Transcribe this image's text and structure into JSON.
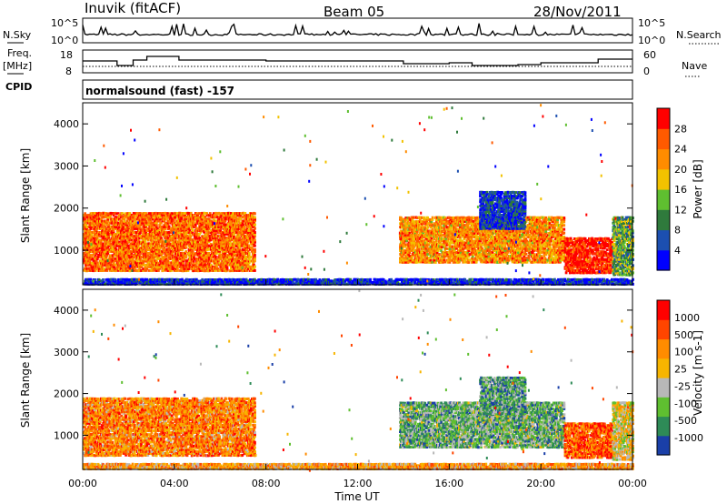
{
  "header": {
    "station": "Inuvik (fitACF)",
    "beam": "Beam 05",
    "date": "28/Nov/2011"
  },
  "sky_panel": {
    "left_label": "N.Sky",
    "right_label": "N.Search",
    "tick_top": "10^5",
    "tick_bottom": "10^0"
  },
  "freq_panel": {
    "left_label_1": "Freq.",
    "left_label_2": "[MHz]",
    "right_label": "Nave",
    "left_ticks": [
      "18",
      "8"
    ],
    "right_ticks": [
      "60",
      "0"
    ]
  },
  "cpid_panel": {
    "left_label": "CPID",
    "text": "normalsound (fast) -157"
  },
  "x_axis": {
    "label": "Time UT",
    "ticks": [
      "00:00",
      "04:00",
      "08:00",
      "12:00",
      "16:00",
      "20:00",
      "00:00"
    ]
  },
  "chart_data": [
    {
      "type": "heatmap",
      "name": "Power",
      "ylabel": "Slant Range [km]",
      "ylim": [
        180,
        4500
      ],
      "yticks": [
        "1000",
        "2000",
        "3000",
        "4000"
      ],
      "xlim_hours": [
        0,
        24
      ],
      "colorbar_label": "Power [dB]",
      "colorbar_ticks": [
        "28",
        "24",
        "20",
        "16",
        "12",
        "8",
        "4"
      ],
      "colors": [
        "#0000ff",
        "#1c4fb0",
        "#2f7a3c",
        "#5fbf30",
        "#f2c200",
        "#ff8c00",
        "#ff5a00",
        "#ff0000"
      ],
      "echo_regions": [
        {
          "t0": 0.0,
          "t1": 7.5,
          "r0": 500,
          "r1": 1900,
          "level": 0.78
        },
        {
          "t0": 13.8,
          "t1": 21.0,
          "r0": 700,
          "r1": 1800,
          "level": 0.7
        },
        {
          "t0": 21.0,
          "t1": 23.1,
          "r0": 450,
          "r1": 1300,
          "level": 0.95
        },
        {
          "t0": 23.1,
          "t1": 24.0,
          "r0": 400,
          "r1": 1800,
          "level": 0.4
        },
        {
          "t0": 17.3,
          "t1": 19.3,
          "r0": 1500,
          "r1": 2400,
          "level": 0.15
        },
        {
          "t0": 0.0,
          "t1": 24.0,
          "r0": 180,
          "r1": 320,
          "level": 0.1
        }
      ]
    },
    {
      "type": "heatmap",
      "name": "Velocity",
      "ylabel": "Slant Range [km]",
      "ylim": [
        180,
        4500
      ],
      "yticks": [
        "1000",
        "2000",
        "3000",
        "4000"
      ],
      "xlim_hours": [
        0,
        24
      ],
      "colorbar_label": "Velocity [m s-1]",
      "colorbar_ticks": [
        "1000",
        "500",
        "100",
        "25",
        "-25",
        "-100",
        "-500",
        "-1000"
      ],
      "colors": [
        "#1a3fa8",
        "#2e8b57",
        "#5fbf30",
        "#b8b8b8",
        "#f7b500",
        "#ff8c00",
        "#ff4500",
        "#ff0000"
      ],
      "echo_regions": [
        {
          "t0": 0.0,
          "t1": 7.5,
          "r0": 500,
          "r1": 1900,
          "level": 0.7
        },
        {
          "t0": 13.8,
          "t1": 21.0,
          "r0": 700,
          "r1": 1800,
          "level": 0.3
        },
        {
          "t0": 21.0,
          "t1": 23.1,
          "r0": 450,
          "r1": 1300,
          "level": 0.8
        },
        {
          "t0": 23.1,
          "t1": 24.0,
          "r0": 400,
          "r1": 1800,
          "level": 0.5
        },
        {
          "t0": 17.3,
          "t1": 19.3,
          "r0": 1500,
          "r1": 2400,
          "level": 0.25
        },
        {
          "t0": 0.0,
          "t1": 24.0,
          "r0": 180,
          "r1": 320,
          "level": 0.62
        }
      ]
    }
  ]
}
